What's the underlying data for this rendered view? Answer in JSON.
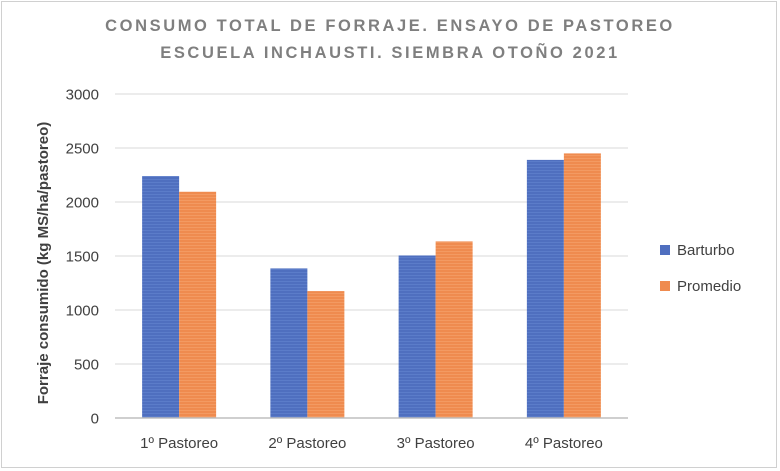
{
  "chart_data": {
    "type": "bar",
    "title_lines": [
      "CONSUMO TOTAL DE FORRAJE. ENSAYO DE PASTOREO",
      "ESCUELA INCHAUSTI. SIEMBRA OTOÑO 2021"
    ],
    "xlabel": "",
    "ylabel": "Forraje consumido (kg MS/ha/pastoreo)",
    "categories": [
      "1º Pastoreo",
      "2º Pastoreo",
      "3º Pastoreo",
      "4º Pastoreo"
    ],
    "series": [
      {
        "name": "Barturbo",
        "color": "#4f6fbf",
        "values": [
          2240,
          1385,
          1505,
          2390
        ]
      },
      {
        "name": "Promedio",
        "color": "#ef8b4f",
        "values": [
          2095,
          1175,
          1635,
          2450
        ]
      }
    ],
    "ylim": [
      0,
      3000
    ],
    "yticks": [
      0,
      500,
      1000,
      1500,
      2000,
      2500,
      3000
    ],
    "grid": true,
    "legend_position": "right"
  }
}
